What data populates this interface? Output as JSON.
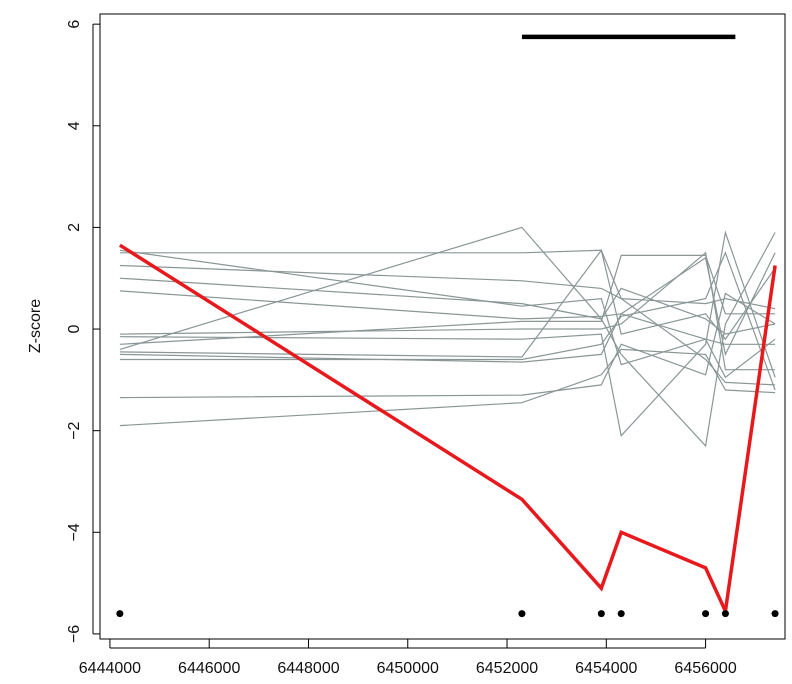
{
  "chart_data": {
    "type": "line",
    "title": "",
    "xlabel": "",
    "ylabel": "Z-score",
    "xlim": [
      6443800,
      6457600
    ],
    "ylim": [
      -6.1,
      6.2
    ],
    "x_ticks": [
      6444000,
      6446000,
      6448000,
      6450000,
      6452000,
      6454000,
      6456000
    ],
    "x_tick_labels": [
      "6444000",
      "6446000",
      "6448000",
      "6450000",
      "6452000",
      "6454000",
      "6456000"
    ],
    "y_ticks": [
      -6,
      -4,
      -2,
      0,
      2,
      4,
      6
    ],
    "y_tick_labels": [
      "−6",
      "−4",
      "−2",
      "0",
      "2",
      "4",
      "6"
    ],
    "x": [
      6444200,
      6452300,
      6453900,
      6454300,
      6456000,
      6456400,
      6457400
    ],
    "highlight_series": {
      "values": [
        1.65,
        -3.35,
        -5.1,
        -4.0,
        -4.7,
        -5.55,
        1.25
      ],
      "color": "#e8191c"
    },
    "background_series": {
      "color": "#8a9696",
      "lines": [
        [
          1.5,
          1.5,
          1.55,
          -0.1,
          0.3,
          -0.2,
          1.2
        ],
        [
          1.25,
          0.95,
          0.8,
          0.6,
          0.5,
          0.6,
          0.4
        ],
        [
          1.0,
          0.5,
          0.2,
          0.8,
          0.2,
          -0.1,
          0.1
        ],
        [
          0.75,
          0.2,
          0.25,
          0.3,
          1.4,
          -0.5,
          1.5
        ],
        [
          -0.1,
          0.0,
          0.0,
          0.1,
          1.5,
          -0.8,
          -0.8
        ],
        [
          -0.15,
          -0.2,
          -0.1,
          -2.1,
          -0.3,
          1.9,
          -0.95
        ],
        [
          -0.3,
          0.15,
          0.15,
          1.45,
          1.45,
          0.3,
          0.3
        ],
        [
          -0.4,
          2.0,
          0.2,
          -0.5,
          -2.3,
          0.1,
          1.9
        ],
        [
          -0.45,
          -0.55,
          1.55,
          0.6,
          -0.6,
          -1.05,
          -1.1
        ],
        [
          -0.5,
          -0.65,
          -0.5,
          0.3,
          -0.2,
          -0.3,
          -0.3
        ],
        [
          -0.6,
          -0.6,
          -0.3,
          0.25,
          0.6,
          1.5,
          -1.2
        ],
        [
          -1.35,
          -1.3,
          -1.1,
          -0.3,
          -0.9,
          0.7,
          0.1
        ],
        [
          -1.9,
          -1.45,
          -0.9,
          -0.4,
          -0.5,
          -1.2,
          -1.25
        ],
        [
          1.55,
          0.45,
          0.6,
          -0.7,
          -0.2,
          -0.95,
          -0.2
        ]
      ]
    },
    "point_markers": {
      "x": [
        6444200,
        6452300,
        6453900,
        6454300,
        6456000,
        6456400,
        6457400
      ],
      "y": -5.6,
      "color": "#000000"
    },
    "region_bar": {
      "x_start": 6452300,
      "x_end": 6456600,
      "y": 5.75,
      "color": "#000000"
    },
    "grid": false,
    "legend": "none"
  }
}
